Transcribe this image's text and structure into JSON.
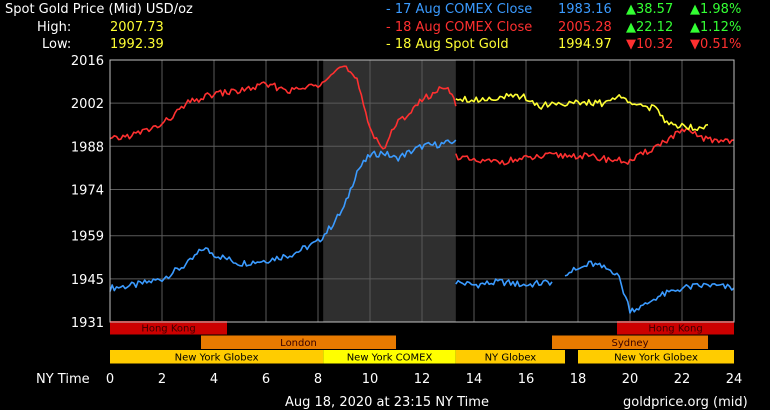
{
  "header": {
    "title": "Spot Gold Price (Mid) USD/oz",
    "high_label": "High:",
    "high_value": "2007.73",
    "low_label": "Low:",
    "low_value": "1992.39",
    "colors": {
      "white": "#ffffff",
      "yellow": "#ffff33",
      "blue": "#3b9bff",
      "red": "#ff3030",
      "green": "#33ff33"
    }
  },
  "legend": [
    {
      "label": "17 Aug COMEX Close",
      "value": "1983.16",
      "change_arrow": "up",
      "change": "38.57",
      "pct": "1.98%",
      "color": "#3b9bff",
      "change_color": "#33ff33"
    },
    {
      "label": "18 Aug COMEX Close",
      "value": "2005.28",
      "change_arrow": "up",
      "change": "22.12",
      "pct": "1.12%",
      "color": "#ff3030",
      "change_color": "#33ff33"
    },
    {
      "label": "18 Aug Spot Gold",
      "value": "1994.97",
      "change_arrow": "down",
      "change": "10.32",
      "pct": "0.51%",
      "color": "#ffff33",
      "change_color": "#ff3030"
    }
  ],
  "chart_data": {
    "type": "line",
    "xlabel": "NY Time",
    "xlim": [
      0,
      24
    ],
    "ylim": [
      1931,
      2016
    ],
    "x_ticks": [
      "0",
      "2",
      "4",
      "6",
      "8",
      "10",
      "12",
      "14",
      "16",
      "18",
      "20",
      "22",
      "24"
    ],
    "y_ticks": [
      "2016",
      "2002",
      "1988",
      "1974",
      "1959",
      "1945",
      "1931"
    ],
    "grid": true,
    "highlight_range": [
      8.2,
      13.3
    ],
    "series": [
      {
        "color": "#3b9bff",
        "segments": [
          [
            [
              0,
              1942
            ],
            [
              1,
              1943
            ],
            [
              2,
              1945
            ],
            [
              3,
              1950
            ],
            [
              3.6,
              1955
            ],
            [
              4,
              1953
            ],
            [
              5,
              1950
            ],
            [
              6,
              1951
            ],
            [
              7,
              1953
            ],
            [
              8,
              1957
            ],
            [
              8.5,
              1962
            ],
            [
              9,
              1968
            ],
            [
              9.5,
              1980
            ],
            [
              10,
              1985
            ],
            [
              10.5,
              1986
            ],
            [
              11,
              1984
            ],
            [
              12,
              1988
            ],
            [
              13,
              1989
            ],
            [
              13.3,
              1990
            ]
          ],
          [
            [
              13.3,
              1944
            ],
            [
              14,
              1943
            ],
            [
              15,
              1944
            ],
            [
              16,
              1943
            ],
            [
              17,
              1944
            ]
          ],
          [
            [
              17.5,
              1947
            ],
            [
              18,
              1948
            ],
            [
              18.5,
              1950
            ],
            [
              19.5,
              1947
            ],
            [
              20,
              1935
            ],
            [
              20.5,
              1936
            ],
            [
              21,
              1939
            ],
            [
              22,
              1942
            ],
            [
              23,
              1943
            ],
            [
              24,
              1942
            ]
          ]
        ]
      },
      {
        "color": "#ff3030",
        "segments": [
          [
            [
              0,
              1990
            ],
            [
              1,
              1992
            ],
            [
              2,
              1995
            ],
            [
              3,
              2002
            ],
            [
              4,
              2005
            ],
            [
              5,
              2006
            ],
            [
              6,
              2008
            ],
            [
              7,
              2006
            ],
            [
              8,
              2008
            ],
            [
              8.5,
              2012
            ],
            [
              9,
              2014
            ],
            [
              9.5,
              2009
            ],
            [
              10,
              1994
            ],
            [
              10.5,
              1987
            ],
            [
              11,
              1995
            ],
            [
              12,
              2003
            ],
            [
              13,
              2008
            ],
            [
              13.3,
              2001
            ]
          ],
          [
            [
              13.3,
              1985
            ],
            [
              14,
              1983
            ],
            [
              15,
              1983
            ],
            [
              16,
              1984
            ],
            [
              17,
              1985
            ],
            [
              18,
              1985
            ],
            [
              19,
              1984
            ],
            [
              20,
              1983
            ],
            [
              21,
              1988
            ],
            [
              22,
              1993
            ],
            [
              22.5,
              1992
            ],
            [
              23,
              1990
            ],
            [
              24,
              1990
            ]
          ]
        ]
      },
      {
        "color": "#ffff33",
        "segments": [
          [
            [
              13.3,
              2004
            ],
            [
              14,
              2003
            ],
            [
              15,
              2004
            ],
            [
              16,
              2004
            ],
            [
              16.5,
              2001
            ],
            [
              17,
              2002
            ],
            [
              18,
              2002
            ],
            [
              19,
              2002
            ],
            [
              19.5,
              2004
            ],
            [
              20,
              2003
            ],
            [
              20.5,
              2001
            ],
            [
              21,
              2000
            ],
            [
              21.5,
              1995
            ],
            [
              22,
              1995
            ],
            [
              22.5,
              1994
            ],
            [
              23,
              1995
            ]
          ]
        ]
      }
    ],
    "sessions": [
      {
        "name": "Hong Kong",
        "start": 0,
        "end": 4.5,
        "row": 0,
        "color": "#cc0000"
      },
      {
        "name": "Hong Kong",
        "start": 19.5,
        "end": 24,
        "row": 0,
        "color": "#cc0000"
      },
      {
        "name": "London",
        "start": 3.5,
        "end": 11,
        "row": 1,
        "color": "#e87a00"
      },
      {
        "name": "Sydney",
        "start": 17,
        "end": 23,
        "row": 1,
        "color": "#e87a00"
      },
      {
        "name": "New York Globex",
        "start": 0,
        "end": 8.2,
        "row": 2,
        "color": "#ffcc00"
      },
      {
        "name": "New York COMEX",
        "start": 8.2,
        "end": 13.3,
        "row": 2,
        "color": "#ffff00"
      },
      {
        "name": "NY Globex",
        "start": 13.3,
        "end": 17.5,
        "row": 2,
        "color": "#ffcc00"
      },
      {
        "name": "New York Globex",
        "start": 18,
        "end": 24,
        "row": 2,
        "color": "#ffcc00"
      }
    ]
  },
  "footer": {
    "timestamp": "Aug 18, 2020 at 23:15 NY Time",
    "source": "goldprice.org (mid)"
  }
}
